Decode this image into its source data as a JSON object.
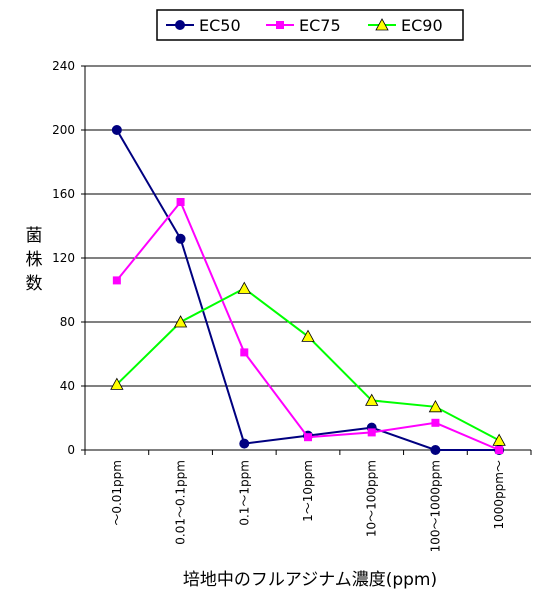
{
  "chart_data": {
    "type": "line",
    "title": "",
    "xlabel": "培地中のフルアジナム濃度(ppm)",
    "ylabel": "菌株数",
    "ylim": [
      0,
      240
    ],
    "yticks": [
      0,
      40,
      80,
      120,
      160,
      200,
      240
    ],
    "grid": true,
    "legend_position": "top",
    "categories": [
      "～0.01ppm",
      "0.01～0.1ppm",
      "0.1～1ppm",
      "1～10ppm",
      "10～100ppm",
      "100～1000ppm",
      "1000ppm～"
    ],
    "series": [
      {
        "name": "EC50",
        "values": [
          200,
          132,
          4,
          9,
          14,
          0,
          0
        ],
        "color": "#000080",
        "marker": "circle"
      },
      {
        "name": "EC75",
        "values": [
          106,
          155,
          61,
          8,
          11,
          17,
          0
        ],
        "color": "#ff00ff",
        "marker": "square"
      },
      {
        "name": "EC90",
        "values": [
          41,
          80,
          101,
          71,
          31,
          27,
          6
        ],
        "color": "#00ff00",
        "marker": "triangle",
        "marker_fill": "#ffff00"
      }
    ]
  }
}
